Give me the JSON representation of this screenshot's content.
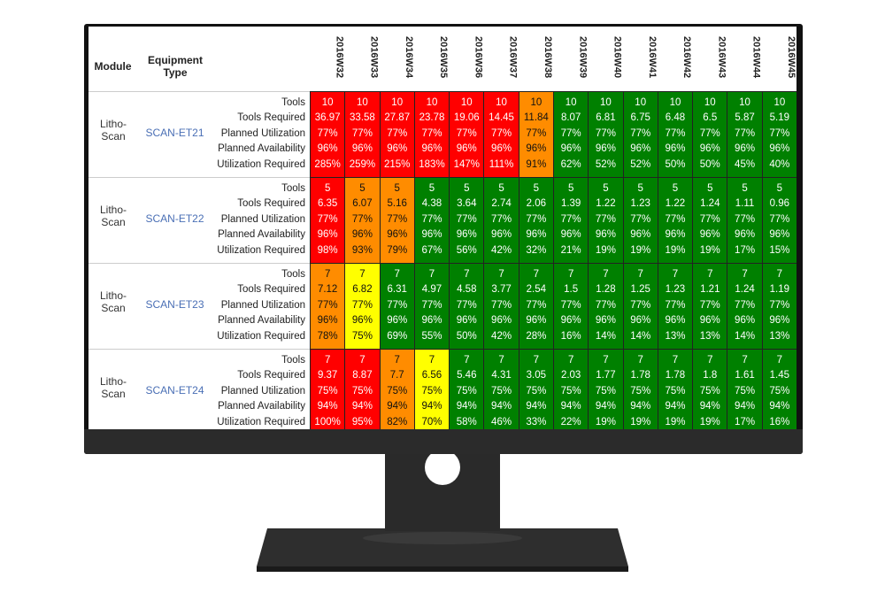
{
  "header": {
    "module": "Module",
    "equipment_type": "Equipment Type",
    "weeks": [
      "2016W32",
      "2016W33",
      "2016W34",
      "2016W35",
      "2016W36",
      "2016W37",
      "2016W38",
      "2016W39",
      "2016W40",
      "2016W41",
      "2016W42",
      "2016W43",
      "2016W44",
      "2016W45"
    ]
  },
  "row_labels": [
    "Tools",
    "Tools Required",
    "Planned Utilization",
    "Planned Availability",
    "Utilization Required"
  ],
  "groups": [
    {
      "module": "Litho-Scan",
      "equipment": "SCAN-ET21",
      "colors": [
        "#ff0000",
        "#ff0000",
        "#ff0000",
        "#ff0000",
        "#ff0000",
        "#ff0000",
        "#ff8c00",
        "#008000",
        "#008000",
        "#008000",
        "#008000",
        "#008000",
        "#008000",
        "#008000"
      ],
      "rows": [
        [
          "10",
          "10",
          "10",
          "10",
          "10",
          "10",
          "10",
          "10",
          "10",
          "10",
          "10",
          "10",
          "10",
          "10"
        ],
        [
          "36.97",
          "33.58",
          "27.87",
          "23.78",
          "19.06",
          "14.45",
          "11.84",
          "8.07",
          "6.81",
          "6.75",
          "6.48",
          "6.5",
          "5.87",
          "5.19"
        ],
        [
          "77%",
          "77%",
          "77%",
          "77%",
          "77%",
          "77%",
          "77%",
          "77%",
          "77%",
          "77%",
          "77%",
          "77%",
          "77%",
          "77%"
        ],
        [
          "96%",
          "96%",
          "96%",
          "96%",
          "96%",
          "96%",
          "96%",
          "96%",
          "96%",
          "96%",
          "96%",
          "96%",
          "96%",
          "96%"
        ],
        [
          "285%",
          "259%",
          "215%",
          "183%",
          "147%",
          "111%",
          "91%",
          "62%",
          "52%",
          "52%",
          "50%",
          "50%",
          "45%",
          "40%"
        ]
      ]
    },
    {
      "module": "Litho-Scan",
      "equipment": "SCAN-ET22",
      "colors": [
        "#ff0000",
        "#ff8c00",
        "#ff8c00",
        "#008000",
        "#008000",
        "#008000",
        "#008000",
        "#008000",
        "#008000",
        "#008000",
        "#008000",
        "#008000",
        "#008000",
        "#008000"
      ],
      "rows": [
        [
          "5",
          "5",
          "5",
          "5",
          "5",
          "5",
          "5",
          "5",
          "5",
          "5",
          "5",
          "5",
          "5",
          "5"
        ],
        [
          "6.35",
          "6.07",
          "5.16",
          "4.38",
          "3.64",
          "2.74",
          "2.06",
          "1.39",
          "1.22",
          "1.23",
          "1.22",
          "1.24",
          "1.11",
          "0.96"
        ],
        [
          "77%",
          "77%",
          "77%",
          "77%",
          "77%",
          "77%",
          "77%",
          "77%",
          "77%",
          "77%",
          "77%",
          "77%",
          "77%",
          "77%"
        ],
        [
          "96%",
          "96%",
          "96%",
          "96%",
          "96%",
          "96%",
          "96%",
          "96%",
          "96%",
          "96%",
          "96%",
          "96%",
          "96%",
          "96%"
        ],
        [
          "98%",
          "93%",
          "79%",
          "67%",
          "56%",
          "42%",
          "32%",
          "21%",
          "19%",
          "19%",
          "19%",
          "19%",
          "17%",
          "15%"
        ]
      ]
    },
    {
      "module": "Litho-Scan",
      "equipment": "SCAN-ET23",
      "colors": [
        "#ff8c00",
        "#ffff00",
        "#008000",
        "#008000",
        "#008000",
        "#008000",
        "#008000",
        "#008000",
        "#008000",
        "#008000",
        "#008000",
        "#008000",
        "#008000",
        "#008000"
      ],
      "rows": [
        [
          "7",
          "7",
          "7",
          "7",
          "7",
          "7",
          "7",
          "7",
          "7",
          "7",
          "7",
          "7",
          "7",
          "7"
        ],
        [
          "7.12",
          "6.82",
          "6.31",
          "4.97",
          "4.58",
          "3.77",
          "2.54",
          "1.5",
          "1.28",
          "1.25",
          "1.23",
          "1.21",
          "1.24",
          "1.19"
        ],
        [
          "77%",
          "77%",
          "77%",
          "77%",
          "77%",
          "77%",
          "77%",
          "77%",
          "77%",
          "77%",
          "77%",
          "77%",
          "77%",
          "77%"
        ],
        [
          "96%",
          "96%",
          "96%",
          "96%",
          "96%",
          "96%",
          "96%",
          "96%",
          "96%",
          "96%",
          "96%",
          "96%",
          "96%",
          "96%"
        ],
        [
          "78%",
          "75%",
          "69%",
          "55%",
          "50%",
          "42%",
          "28%",
          "16%",
          "14%",
          "14%",
          "13%",
          "13%",
          "14%",
          "13%"
        ]
      ]
    },
    {
      "module": "Litho-Scan",
      "equipment": "SCAN-ET24",
      "colors": [
        "#ff0000",
        "#ff0000",
        "#ff8c00",
        "#ffff00",
        "#008000",
        "#008000",
        "#008000",
        "#008000",
        "#008000",
        "#008000",
        "#008000",
        "#008000",
        "#008000",
        "#008000"
      ],
      "rows": [
        [
          "7",
          "7",
          "7",
          "7",
          "7",
          "7",
          "7",
          "7",
          "7",
          "7",
          "7",
          "7",
          "7",
          "7"
        ],
        [
          "9.37",
          "8.87",
          "7.7",
          "6.56",
          "5.46",
          "4.31",
          "3.05",
          "2.03",
          "1.77",
          "1.78",
          "1.78",
          "1.8",
          "1.61",
          "1.45"
        ],
        [
          "75%",
          "75%",
          "75%",
          "75%",
          "75%",
          "75%",
          "75%",
          "75%",
          "75%",
          "75%",
          "75%",
          "75%",
          "75%",
          "75%"
        ],
        [
          "94%",
          "94%",
          "94%",
          "94%",
          "94%",
          "94%",
          "94%",
          "94%",
          "94%",
          "94%",
          "94%",
          "94%",
          "94%",
          "94%"
        ],
        [
          "100%",
          "95%",
          "82%",
          "70%",
          "58%",
          "46%",
          "33%",
          "22%",
          "19%",
          "19%",
          "19%",
          "19%",
          "17%",
          "16%"
        ]
      ]
    }
  ]
}
